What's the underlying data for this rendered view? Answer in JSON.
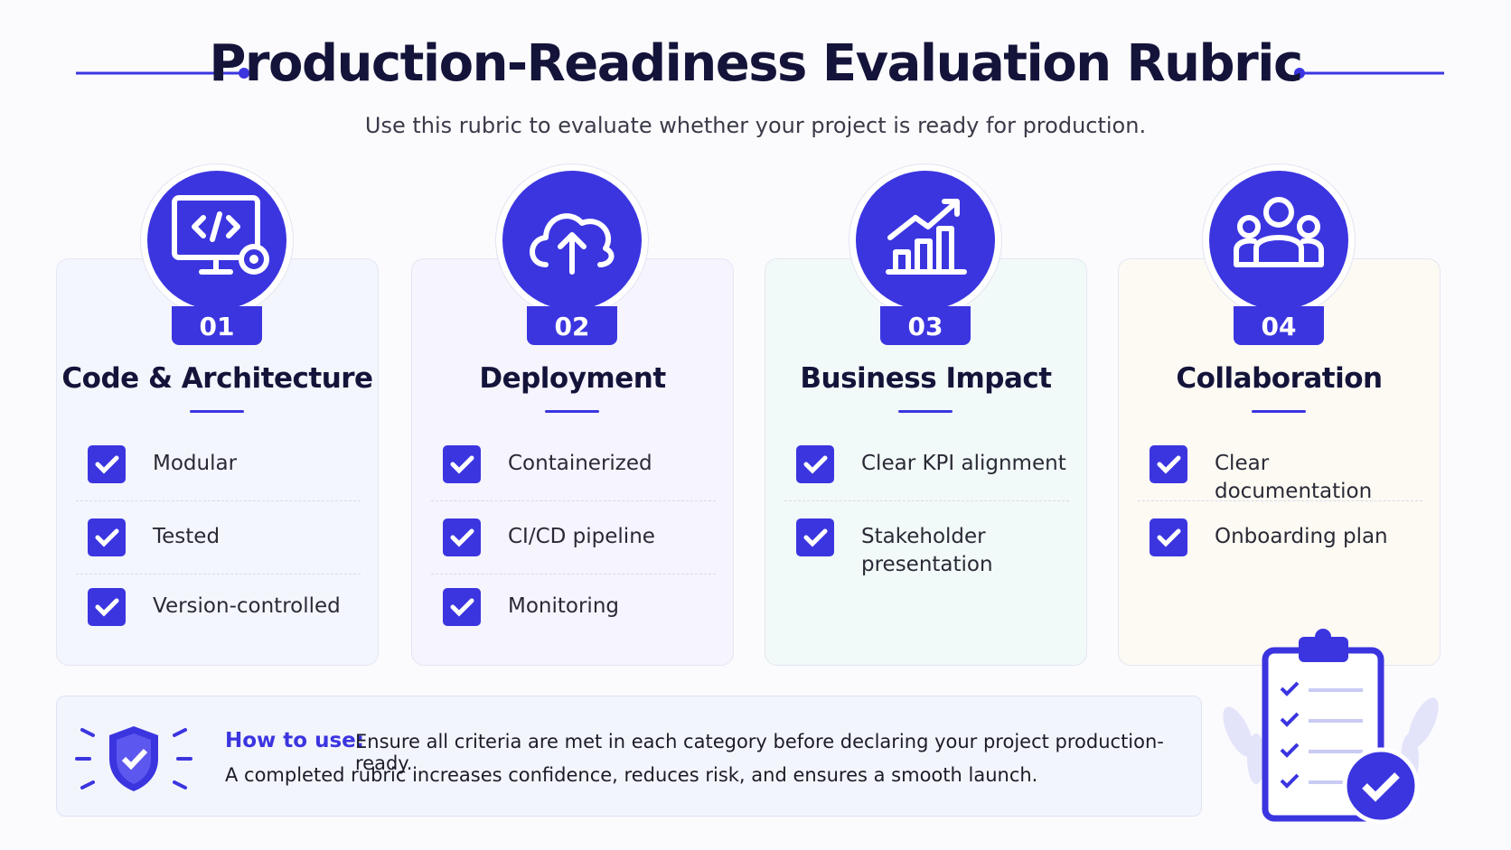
{
  "header": {
    "title": "Production-Readiness Evaluation Rubric",
    "subtitle": "Use this rubric to evaluate whether your project is ready for production."
  },
  "cards": [
    {
      "number": "01",
      "title": "Code & Architecture",
      "items": [
        "Modular",
        "Tested",
        "Version-controlled"
      ]
    },
    {
      "number": "02",
      "title": "Deployment",
      "items": [
        "Containerized",
        "CI/CD pipeline",
        "Monitoring"
      ]
    },
    {
      "number": "03",
      "title": "Business Impact",
      "items": [
        "Clear KPI alignment",
        "Stakeholder presentation"
      ]
    },
    {
      "number": "04",
      "title": "Collaboration",
      "items": [
        "Clear documentation",
        "Onboarding plan"
      ]
    }
  ],
  "note": {
    "label": "How to use:",
    "line1": "Ensure all criteria are met in each category before declaring your project production-ready.",
    "line2": "A completed rubric increases confidence, reduces risk, and ensures a smooth launch."
  }
}
